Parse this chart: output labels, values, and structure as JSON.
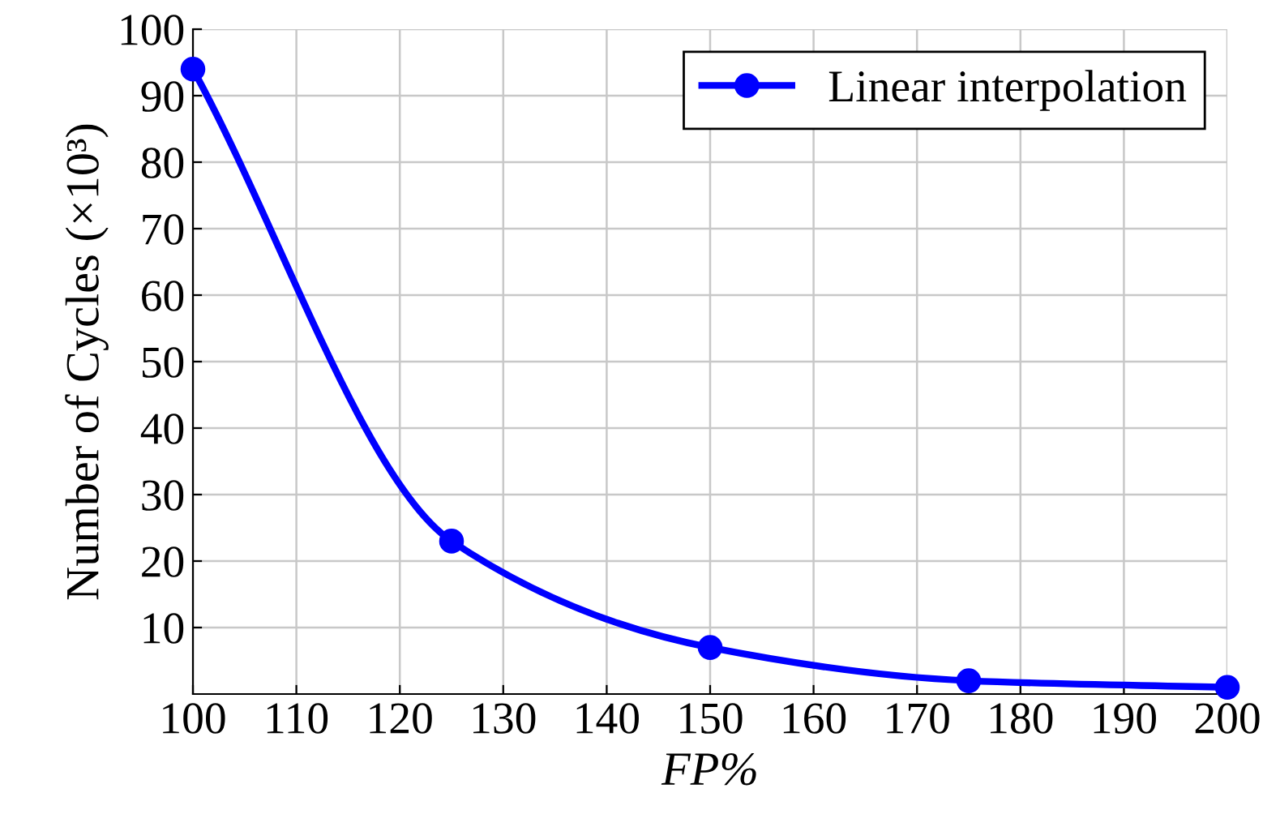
{
  "chart_data": {
    "type": "line",
    "xlabel": "FP%",
    "ylabel": "Number of Cycles (×10³)",
    "x": [
      100,
      125,
      150,
      175,
      200
    ],
    "series": [
      {
        "name": "Linear interpolation",
        "color": "#0000ff",
        "values": [
          94,
          23,
          7,
          2,
          1
        ]
      }
    ],
    "xlim": [
      100,
      200
    ],
    "xticks": [
      100,
      110,
      120,
      130,
      140,
      150,
      160,
      170,
      180,
      190,
      200
    ],
    "ylim": [
      0,
      100
    ],
    "yticks": [
      10,
      20,
      30,
      40,
      50,
      60,
      70,
      80,
      90,
      100
    ],
    "grid": true,
    "legend": "top right",
    "marker": "circle",
    "line_style": "solid"
  }
}
